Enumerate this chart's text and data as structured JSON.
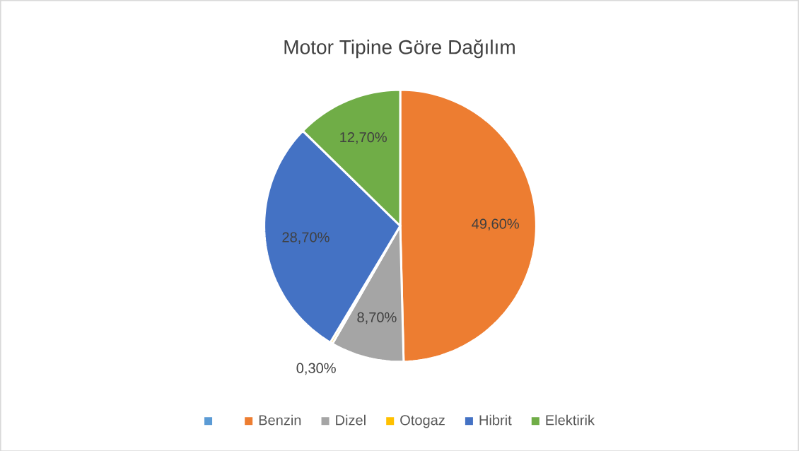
{
  "chart_data": {
    "type": "pie",
    "title": "Motor  Tipine Göre Dağılım",
    "categories": [
      null,
      "Benzin",
      "Dizel",
      "Otogaz",
      "Hibrit",
      "Elektirik"
    ],
    "values": [
      0,
      49.6,
      8.7,
      0.3,
      28.7,
      12.7
    ],
    "colors": [
      "#5b9bd5",
      "#ed7d31",
      "#a5a5a5",
      "#ffc000",
      "#4472c4",
      "#70ad47"
    ],
    "value_labels": [
      null,
      "49,60%",
      "8,70%",
      "0,30%",
      "28,70%",
      "12,70%"
    ],
    "legend": "bottom"
  }
}
